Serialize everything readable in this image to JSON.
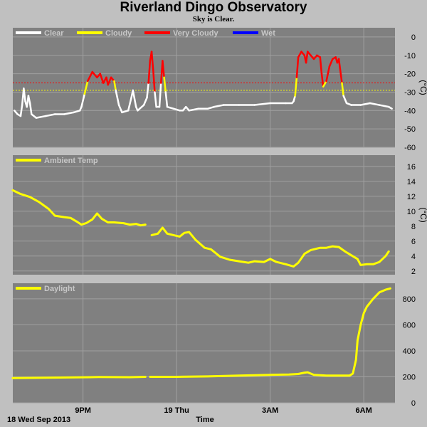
{
  "title": "Riverland Dingo Observatory",
  "subtitle": "Sky is Clear.",
  "footer": {
    "date_label": "18 Wed Sep 2013",
    "time_label": "Time"
  },
  "x_ticks": [
    {
      "label": "9PM",
      "hour": 21
    },
    {
      "label": "19 Thu",
      "hour": 24
    },
    {
      "label": "3AM",
      "hour": 27
    },
    {
      "label": "6AM",
      "hour": 30
    }
  ],
  "colors": {
    "panel_bg": "#808080",
    "grid": "#a0a0a0",
    "clear": "#ffffff",
    "cloudy": "#ffff00",
    "very_cloudy": "#ff0000",
    "wet": "#0000ff",
    "temp": "#ffff00",
    "daylight": "#ffff00",
    "page_bg": "#c0c0c0"
  },
  "chart_data": [
    {
      "type": "line",
      "id": "sky",
      "unit": "(°C)",
      "legend": [
        "Clear",
        "Cloudy",
        "Very Cloudy",
        "Wet"
      ],
      "xlim": [
        18.75,
        31.0
      ],
      "ylim": [
        -60,
        5
      ],
      "yticks": [
        0,
        -10,
        -20,
        -30,
        -40,
        -50,
        -60
      ],
      "thresholds": [
        {
          "value": -25,
          "color": "#ff0000"
        },
        {
          "value": -29,
          "color": "#ffff00"
        }
      ],
      "points": [
        [
          18.8,
          -40
        ],
        [
          18.9,
          -42
        ],
        [
          19.0,
          -43
        ],
        [
          19.05,
          -37
        ],
        [
          19.1,
          -28
        ],
        [
          19.15,
          -35
        ],
        [
          19.2,
          -38
        ],
        [
          19.25,
          -32
        ],
        [
          19.3,
          -36
        ],
        [
          19.35,
          -42
        ],
        [
          19.5,
          -44
        ],
        [
          19.8,
          -43
        ],
        [
          20.1,
          -42
        ],
        [
          20.4,
          -42
        ],
        [
          20.7,
          -41
        ],
        [
          20.9,
          -40
        ],
        [
          20.95,
          -38
        ],
        [
          21.05,
          -31
        ],
        [
          21.15,
          -24
        ],
        [
          21.3,
          -19
        ],
        [
          21.45,
          -22
        ],
        [
          21.55,
          -20
        ],
        [
          21.65,
          -25
        ],
        [
          21.75,
          -22
        ],
        [
          21.8,
          -26
        ],
        [
          21.9,
          -22
        ],
        [
          22.0,
          -24
        ],
        [
          22.05,
          -29
        ],
        [
          22.15,
          -37
        ],
        [
          22.25,
          -41
        ],
        [
          22.45,
          -40
        ],
        [
          22.55,
          -33
        ],
        [
          22.6,
          -29
        ],
        [
          22.7,
          -38
        ],
        [
          22.75,
          -40
        ],
        [
          22.95,
          -37
        ],
        [
          23.05,
          -33
        ],
        [
          23.1,
          -25
        ],
        [
          23.15,
          -13
        ],
        [
          23.2,
          -8
        ],
        [
          23.25,
          -18
        ],
        [
          23.3,
          -30
        ],
        [
          23.35,
          -38
        ],
        [
          23.45,
          -38
        ],
        [
          23.5,
          -25
        ],
        [
          23.55,
          -13
        ],
        [
          23.6,
          -22
        ],
        [
          23.65,
          -30
        ],
        [
          23.7,
          -38
        ],
        [
          23.9,
          -39
        ],
        [
          24.1,
          -40
        ],
        [
          24.2,
          -40
        ],
        [
          24.3,
          -38
        ],
        [
          24.4,
          -40
        ],
        [
          24.7,
          -39
        ],
        [
          25.0,
          -39
        ],
        [
          25.2,
          -38
        ],
        [
          25.5,
          -37
        ],
        [
          26.0,
          -37
        ],
        [
          26.5,
          -37
        ],
        [
          27.0,
          -36
        ],
        [
          27.5,
          -36
        ],
        [
          27.7,
          -36
        ],
        [
          27.75,
          -35
        ],
        [
          27.8,
          -32
        ],
        [
          27.85,
          -22
        ],
        [
          27.9,
          -11
        ],
        [
          28.0,
          -8
        ],
        [
          28.1,
          -10
        ],
        [
          28.15,
          -14
        ],
        [
          28.2,
          -8
        ],
        [
          28.3,
          -10
        ],
        [
          28.4,
          -12
        ],
        [
          28.5,
          -10
        ],
        [
          28.6,
          -11
        ],
        [
          28.65,
          -20
        ],
        [
          28.7,
          -27
        ],
        [
          28.8,
          -24
        ],
        [
          28.9,
          -16
        ],
        [
          29.0,
          -12
        ],
        [
          29.1,
          -11
        ],
        [
          29.15,
          -14
        ],
        [
          29.2,
          -12
        ],
        [
          29.3,
          -25
        ],
        [
          29.35,
          -32
        ],
        [
          29.45,
          -36
        ],
        [
          29.6,
          -37
        ],
        [
          29.9,
          -37
        ],
        [
          30.2,
          -36
        ],
        [
          30.5,
          -37
        ],
        [
          30.8,
          -38
        ],
        [
          30.9,
          -39
        ]
      ]
    },
    {
      "type": "line",
      "id": "ambient",
      "unit": "(°C)",
      "legend": [
        "Ambient Temp"
      ],
      "xlim": [
        18.75,
        31.0
      ],
      "ylim": [
        1.5,
        17.5
      ],
      "yticks": [
        16,
        14,
        12,
        10,
        8,
        6,
        4,
        2
      ],
      "segments": [
        [
          [
            18.75,
            12.8
          ],
          [
            19.0,
            12.3
          ],
          [
            19.3,
            11.9
          ],
          [
            19.6,
            11.2
          ],
          [
            19.9,
            10.3
          ],
          [
            20.1,
            9.4
          ],
          [
            20.4,
            9.2
          ],
          [
            20.6,
            9.1
          ],
          [
            20.8,
            8.6
          ],
          [
            20.95,
            8.2
          ],
          [
            21.1,
            8.4
          ],
          [
            21.3,
            8.9
          ],
          [
            21.45,
            9.7
          ],
          [
            21.6,
            9.0
          ],
          [
            21.8,
            8.5
          ],
          [
            22.0,
            8.5
          ],
          [
            22.3,
            8.4
          ],
          [
            22.5,
            8.2
          ],
          [
            22.7,
            8.3
          ],
          [
            22.85,
            8.1
          ],
          [
            23.0,
            8.2
          ]
        ],
        [
          [
            23.2,
            6.8
          ],
          [
            23.4,
            7.0
          ],
          [
            23.55,
            7.8
          ],
          [
            23.7,
            7.0
          ],
          [
            23.9,
            6.8
          ],
          [
            24.1,
            6.6
          ],
          [
            24.25,
            7.1
          ],
          [
            24.4,
            7.2
          ],
          [
            24.6,
            6.2
          ],
          [
            24.9,
            5.1
          ],
          [
            25.1,
            4.9
          ],
          [
            25.4,
            3.9
          ],
          [
            25.7,
            3.5
          ],
          [
            26.0,
            3.3
          ],
          [
            26.3,
            3.1
          ],
          [
            26.5,
            3.3
          ],
          [
            26.8,
            3.2
          ],
          [
            27.0,
            3.6
          ],
          [
            27.2,
            3.2
          ],
          [
            27.5,
            2.9
          ],
          [
            27.75,
            2.6
          ],
          [
            27.9,
            3.1
          ],
          [
            28.1,
            4.3
          ],
          [
            28.3,
            4.8
          ],
          [
            28.6,
            5.1
          ],
          [
            28.8,
            5.1
          ],
          [
            29.0,
            5.3
          ],
          [
            29.2,
            5.2
          ],
          [
            29.4,
            4.6
          ],
          [
            29.6,
            4.1
          ],
          [
            29.8,
            3.6
          ],
          [
            29.9,
            2.8
          ],
          [
            30.1,
            2.9
          ],
          [
            30.3,
            2.9
          ],
          [
            30.5,
            3.2
          ],
          [
            30.7,
            4.0
          ],
          [
            30.8,
            4.6
          ]
        ]
      ]
    },
    {
      "type": "line",
      "id": "daylight",
      "legend": [
        "Daylight"
      ],
      "xlim": [
        18.75,
        31.0
      ],
      "ylim": [
        0,
        920
      ],
      "yticks": [
        800,
        600,
        400,
        200,
        0
      ],
      "segments": [
        [
          [
            18.75,
            190
          ],
          [
            19.5,
            192
          ],
          [
            20.5,
            195
          ],
          [
            21.5,
            198
          ],
          [
            22.5,
            197
          ],
          [
            23.0,
            200
          ]
        ],
        [
          [
            23.15,
            200
          ],
          [
            24.0,
            200
          ],
          [
            25.0,
            203
          ],
          [
            26.0,
            210
          ],
          [
            27.0,
            215
          ],
          [
            27.6,
            218
          ],
          [
            27.9,
            222
          ],
          [
            28.1,
            232
          ],
          [
            28.2,
            235
          ],
          [
            28.4,
            215
          ],
          [
            28.8,
            210
          ],
          [
            29.3,
            210
          ],
          [
            29.55,
            210
          ],
          [
            29.65,
            225
          ],
          [
            29.75,
            330
          ],
          [
            29.8,
            480
          ],
          [
            29.9,
            600
          ],
          [
            30.0,
            690
          ],
          [
            30.1,
            740
          ],
          [
            30.3,
            800
          ],
          [
            30.5,
            850
          ],
          [
            30.7,
            870
          ],
          [
            30.85,
            880
          ]
        ]
      ]
    }
  ]
}
